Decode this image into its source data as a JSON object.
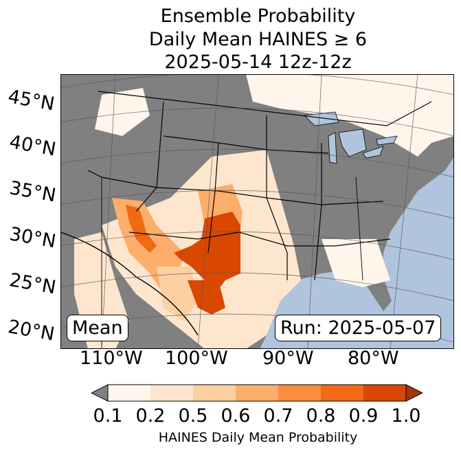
{
  "title": {
    "line1": "Ensemble Probability",
    "line2": "Daily Mean HAINES ≥ 6",
    "line3": "2025-05-14 12z-12z"
  },
  "map": {
    "lat_labels": [
      "45°N",
      "40°N",
      "35°N",
      "30°N",
      "25°N",
      "20°N"
    ],
    "lon_labels": [
      "110°W",
      "100°W",
      "90°W",
      "80°W"
    ],
    "mean_box": "Mean",
    "run_box": "Run: 2025-05-07",
    "colors": {
      "ocean": "#b0c4de",
      "no_data_land": "#808080",
      "gridline": "#555555"
    }
  },
  "colorbar": {
    "ticks": [
      "0.1",
      "0.2",
      "0.5",
      "0.6",
      "0.7",
      "0.8",
      "0.9",
      "1.0"
    ],
    "label": "HAINES Daily Mean Probability",
    "under_color": "#808080",
    "colors": [
      "#fff5eb",
      "#fee6ce",
      "#fdd0a2",
      "#fdae6b",
      "#fd8d3c",
      "#f16913",
      "#d94801",
      "#a63603"
    ]
  }
}
